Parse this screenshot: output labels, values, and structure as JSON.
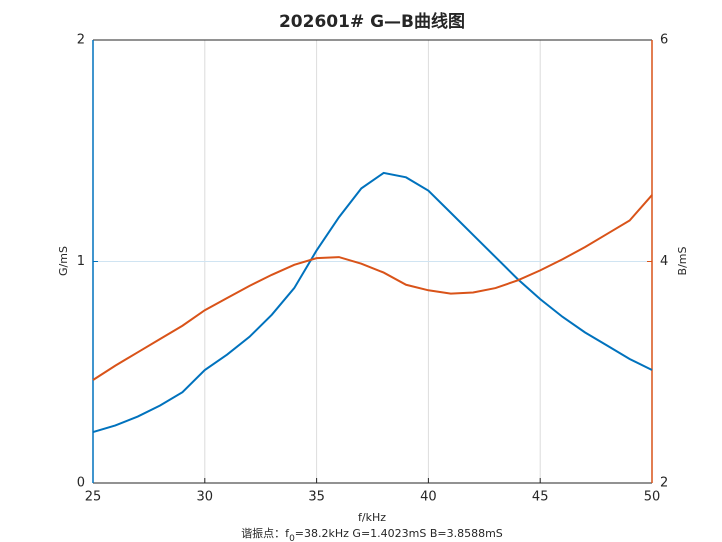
{
  "chart_data": {
    "type": "line",
    "title": "202601# G—B曲线图",
    "xlabel": "f/kHz",
    "ylabel": "G/mS",
    "y2label": "B/mS",
    "annotation": {
      "prefix": "谐振点：f",
      "subscript": "0",
      "suffix": "=38.2kHz  G=1.4023mS  B=3.8588mS"
    },
    "x": [
      25,
      26,
      27,
      28,
      29,
      30,
      31,
      32,
      33,
      34,
      35,
      36,
      37,
      38,
      39,
      40,
      41,
      42,
      43,
      44,
      45,
      46,
      47,
      48,
      49,
      50
    ],
    "series": [
      {
        "name": "G",
        "color": "#0072BD",
        "values": [
          0.23,
          0.26,
          0.3,
          0.35,
          0.41,
          0.51,
          0.58,
          0.66,
          0.76,
          0.88,
          1.05,
          1.2,
          1.33,
          1.4,
          1.38,
          1.32,
          1.22,
          1.12,
          1.02,
          0.92,
          0.83,
          0.75,
          0.68,
          0.62,
          0.56,
          0.51
        ]
      },
      {
        "name": "B",
        "color": "#D95319",
        "axis": "y2",
        "values": [
          2.93,
          3.06,
          3.18,
          3.3,
          3.42,
          3.56,
          3.67,
          3.78,
          3.88,
          3.97,
          4.03,
          4.04,
          3.98,
          3.9,
          3.79,
          3.74,
          3.71,
          3.72,
          3.76,
          3.83,
          3.92,
          4.02,
          4.13,
          4.25,
          4.37,
          4.6
        ]
      }
    ],
    "xlim": [
      25,
      50
    ],
    "xticks": [
      25,
      30,
      35,
      40,
      45,
      50
    ],
    "ylim": [
      0,
      2
    ],
    "yticks": [
      0,
      1,
      2
    ],
    "y2lim": [
      2,
      6
    ],
    "y2ticks": [
      2,
      4,
      6
    ],
    "grid": true
  }
}
